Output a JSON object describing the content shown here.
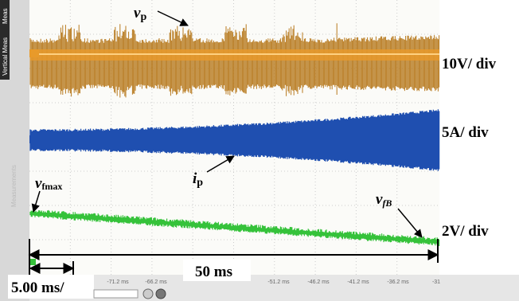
{
  "scope": {
    "side_tabs": [
      "Meas",
      "Vertical Meas",
      "Measurements"
    ],
    "time_labels": [
      "-71.2 ms",
      "-66.2 ms",
      "-51.2 ms",
      "-46.2 ms",
      "-41.2 ms",
      "-36.2 ms",
      "-31"
    ],
    "timebase": "5.00 ms/"
  },
  "annotations": {
    "vp": {
      "main": "v",
      "sub": "p"
    },
    "ip": {
      "main": "i",
      "sub": "p"
    },
    "vfmax": {
      "main": "v",
      "sub": "fmax"
    },
    "vfB": {
      "main": "v",
      "sub": "fB"
    },
    "span": "50 ms",
    "scale_1": "10V/ div",
    "scale_2": "5A/ div",
    "scale_3": "2V/ div"
  }
}
